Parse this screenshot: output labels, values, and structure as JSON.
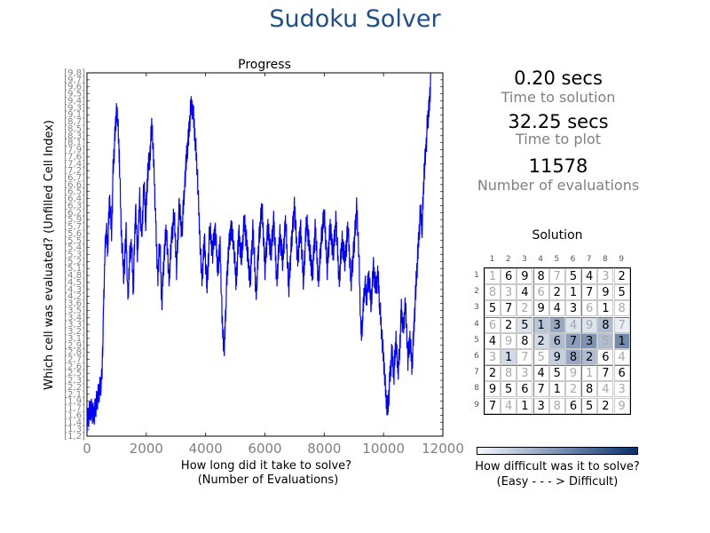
{
  "page_title": "Sudoku Solver",
  "chart_data": {
    "type": "line",
    "title": "Progress",
    "xlabel_line1": "How long did it take to solve?",
    "xlabel_line2": "(Number of Evaluations)",
    "ylabel": "Which cell was evaluated? (Unfilled Cell Index)",
    "xlim": [
      0,
      12000
    ],
    "x_ticks": [
      "0",
      "2000",
      "4000",
      "6000",
      "8000",
      "10000",
      "12000"
    ],
    "y_ticks": [
      "[1,2]",
      "[1,3]",
      "[1,4]",
      "[1,6]",
      "[1,7]",
      "[1,9]",
      "[2,1]",
      "[2,2]",
      "[2,3]",
      "[2,5]",
      "[2,6]",
      "[2,7]",
      "[2,8]",
      "[2,9]",
      "[3,1]",
      "[3,2]",
      "[3,3]",
      "[3,4]",
      "[3,5]",
      "[3,6]",
      "[4,2]",
      "[4,3]",
      "[4,5]",
      "[4,8]",
      "[5,1]",
      "[5,2]",
      "[5,3]",
      "[5,4]",
      "[5,5]",
      "[5,6]",
      "[5,7]",
      "[5,9]",
      "[6,2]",
      "[6,3]",
      "[6,4]",
      "[6,5]",
      "[6,6]",
      "[6,7]",
      "[7,2]",
      "[7,4]",
      "[7,6]",
      "[7,9]",
      "[8,1]",
      "[8,3]",
      "[8,5]",
      "[8,7]",
      "[9,1]",
      "[9,3]",
      "[9,4]",
      "[9,5]",
      "[9,6]",
      "[9,7]",
      "[9,8]"
    ],
    "series": [
      {
        "color": "#0000ff",
        "points": [
          [
            0,
            2
          ],
          [
            120,
            4
          ],
          [
            230,
            3
          ],
          [
            330,
            5
          ],
          [
            500,
            8
          ],
          [
            560,
            18
          ],
          [
            600,
            25
          ],
          [
            640,
            30
          ],
          [
            700,
            27
          ],
          [
            760,
            34
          ],
          [
            830,
            29
          ],
          [
            880,
            38
          ],
          [
            930,
            42
          ],
          [
            980,
            46
          ],
          [
            1030,
            46
          ],
          [
            1090,
            40
          ],
          [
            1160,
            29
          ],
          [
            1240,
            23
          ],
          [
            1320,
            29
          ],
          [
            1380,
            19
          ],
          [
            1430,
            25
          ],
          [
            1500,
            28
          ],
          [
            1560,
            21
          ],
          [
            1640,
            33
          ],
          [
            1700,
            26
          ],
          [
            1780,
            34
          ],
          [
            1840,
            28
          ],
          [
            1920,
            36
          ],
          [
            1980,
            31
          ],
          [
            2050,
            38
          ],
          [
            2120,
            40
          ],
          [
            2190,
            45
          ],
          [
            2260,
            38
          ],
          [
            2320,
            30
          ],
          [
            2390,
            22
          ],
          [
            2450,
            29
          ],
          [
            2520,
            19
          ],
          [
            2600,
            26
          ],
          [
            2680,
            30
          ],
          [
            2760,
            22
          ],
          [
            2850,
            28
          ],
          [
            2940,
            32
          ],
          [
            3020,
            24
          ],
          [
            3110,
            33
          ],
          [
            3200,
            29
          ],
          [
            3290,
            36
          ],
          [
            3360,
            40
          ],
          [
            3430,
            43
          ],
          [
            3500,
            47
          ],
          [
            3570,
            47
          ],
          [
            3640,
            43
          ],
          [
            3720,
            38
          ],
          [
            3790,
            30
          ],
          [
            3870,
            22
          ],
          [
            3960,
            28
          ],
          [
            4050,
            21
          ],
          [
            4140,
            30
          ],
          [
            4230,
            26
          ],
          [
            4320,
            30
          ],
          [
            4410,
            24
          ],
          [
            4490,
            27
          ],
          [
            4560,
            16
          ],
          [
            4630,
            12
          ],
          [
            4690,
            20
          ],
          [
            4760,
            26
          ],
          [
            4850,
            30
          ],
          [
            4940,
            28
          ],
          [
            5030,
            22
          ],
          [
            5120,
            29
          ],
          [
            5210,
            25
          ],
          [
            5300,
            31
          ],
          [
            5400,
            27
          ],
          [
            5500,
            22
          ],
          [
            5600,
            30
          ],
          [
            5700,
            20
          ],
          [
            5800,
            28
          ],
          [
            5900,
            33
          ],
          [
            6000,
            24
          ],
          [
            6100,
            30
          ],
          [
            6200,
            26
          ],
          [
            6300,
            31
          ],
          [
            6400,
            22
          ],
          [
            6500,
            29
          ],
          [
            6600,
            25
          ],
          [
            6700,
            31
          ],
          [
            6800,
            21
          ],
          [
            6900,
            28
          ],
          [
            7000,
            33
          ],
          [
            7100,
            25
          ],
          [
            7200,
            30
          ],
          [
            7300,
            22
          ],
          [
            7400,
            31
          ],
          [
            7500,
            27
          ],
          [
            7600,
            23
          ],
          [
            7700,
            30
          ],
          [
            7800,
            22
          ],
          [
            7900,
            28
          ],
          [
            8000,
            32
          ],
          [
            8100,
            24
          ],
          [
            8200,
            30
          ],
          [
            8300,
            26
          ],
          [
            8400,
            31
          ],
          [
            8500,
            22
          ],
          [
            8600,
            28
          ],
          [
            8700,
            25
          ],
          [
            8800,
            30
          ],
          [
            8900,
            22
          ],
          [
            9000,
            27
          ],
          [
            9100,
            33
          ],
          [
            9180,
            24
          ],
          [
            9240,
            14
          ],
          [
            9300,
            17
          ],
          [
            9360,
            22
          ],
          [
            9430,
            20
          ],
          [
            9500,
            23
          ],
          [
            9580,
            19
          ],
          [
            9660,
            24
          ],
          [
            9740,
            21
          ],
          [
            9810,
            23
          ],
          [
            9870,
            19
          ],
          [
            9950,
            14
          ],
          [
            10020,
            10
          ],
          [
            10090,
            5
          ],
          [
            10150,
            4
          ],
          [
            10210,
            8
          ],
          [
            10280,
            12
          ],
          [
            10350,
            9
          ],
          [
            10420,
            14
          ],
          [
            10480,
            9
          ],
          [
            10540,
            12
          ],
          [
            10600,
            18
          ],
          [
            10660,
            15
          ],
          [
            10740,
            19
          ],
          [
            10820,
            11
          ],
          [
            10890,
            14
          ],
          [
            10960,
            10
          ],
          [
            11030,
            16
          ],
          [
            11100,
            22
          ],
          [
            11170,
            27
          ],
          [
            11240,
            32
          ],
          [
            11300,
            30
          ],
          [
            11370,
            38
          ],
          [
            11430,
            41
          ],
          [
            11480,
            45
          ],
          [
            11540,
            47
          ],
          [
            11600,
            52
          ]
        ]
      }
    ]
  },
  "stats": {
    "time_to_solution_value": "0.20 secs",
    "time_to_solution_label": "Time to solution",
    "time_to_plot_value": "32.25 secs",
    "time_to_plot_label": "Time to plot",
    "evaluations_value": "11578",
    "evaluations_label": "Number of evaluations"
  },
  "solution": {
    "title": "Solution",
    "column_headers": [
      "1",
      "2",
      "3",
      "4",
      "5",
      "6",
      "7",
      "8",
      "9"
    ],
    "row_headers": [
      "1",
      "2",
      "3",
      "4",
      "5",
      "6",
      "7",
      "8",
      "9"
    ],
    "grid": [
      [
        "1",
        "6",
        "9",
        "8",
        "7",
        "5",
        "4",
        "3",
        "2"
      ],
      [
        "8",
        "3",
        "4",
        "6",
        "2",
        "1",
        "7",
        "9",
        "5"
      ],
      [
        "5",
        "7",
        "2",
        "9",
        "4",
        "3",
        "6",
        "1",
        "8"
      ],
      [
        "6",
        "2",
        "5",
        "1",
        "3",
        "4",
        "9",
        "8",
        "7"
      ],
      [
        "4",
        "9",
        "8",
        "2",
        "6",
        "7",
        "3",
        "5",
        "1"
      ],
      [
        "3",
        "1",
        "7",
        "5",
        "9",
        "8",
        "2",
        "6",
        "4"
      ],
      [
        "2",
        "8",
        "3",
        "4",
        "5",
        "9",
        "1",
        "7",
        "6"
      ],
      [
        "9",
        "5",
        "6",
        "7",
        "1",
        "2",
        "8",
        "4",
        "3"
      ],
      [
        "7",
        "4",
        "1",
        "3",
        "8",
        "6",
        "5",
        "2",
        "9"
      ]
    ],
    "given": [
      [
        0,
        1,
        1,
        1,
        0,
        1,
        1,
        0,
        1
      ],
      [
        0,
        0,
        1,
        0,
        1,
        1,
        1,
        1,
        1
      ],
      [
        1,
        1,
        0,
        1,
        1,
        1,
        0,
        1,
        0
      ],
      [
        0,
        1,
        1,
        1,
        1,
        0,
        0,
        1,
        0
      ],
      [
        1,
        0,
        1,
        1,
        1,
        1,
        1,
        0,
        1
      ],
      [
        0,
        1,
        0,
        0,
        1,
        1,
        1,
        1,
        0
      ],
      [
        1,
        0,
        0,
        1,
        1,
        0,
        0,
        1,
        1
      ],
      [
        1,
        1,
        1,
        1,
        1,
        0,
        1,
        0,
        0
      ],
      [
        1,
        0,
        1,
        1,
        0,
        1,
        1,
        1,
        0
      ]
    ],
    "difficulty": [
      [
        0,
        0,
        0,
        0,
        0,
        0,
        0,
        0,
        0
      ],
      [
        0,
        0,
        0,
        0,
        0,
        0,
        0,
        0,
        0
      ],
      [
        0,
        0,
        0,
        0,
        0,
        0,
        0,
        0,
        0
      ],
      [
        0,
        0,
        0.1,
        0.25,
        0.4,
        0.1,
        0.1,
        0.3,
        0.05
      ],
      [
        0,
        0,
        0,
        0.15,
        0.3,
        0.45,
        0.5,
        0.3,
        0.55
      ],
      [
        0,
        0.15,
        0,
        0,
        0.2,
        0.4,
        0.3,
        0,
        0
      ],
      [
        0,
        0,
        0,
        0,
        0,
        0,
        0,
        0,
        0
      ],
      [
        0,
        0,
        0,
        0,
        0,
        0,
        0,
        0,
        0
      ],
      [
        0,
        0,
        0,
        0,
        0,
        0,
        0,
        0,
        0
      ]
    ],
    "colorbar_start": "#f4f8fd",
    "colorbar_end": "#08306b",
    "colorbar_label_line1": "How difficult was it to solve?",
    "colorbar_label_line2": "(Easy - - - > Difficult)"
  }
}
